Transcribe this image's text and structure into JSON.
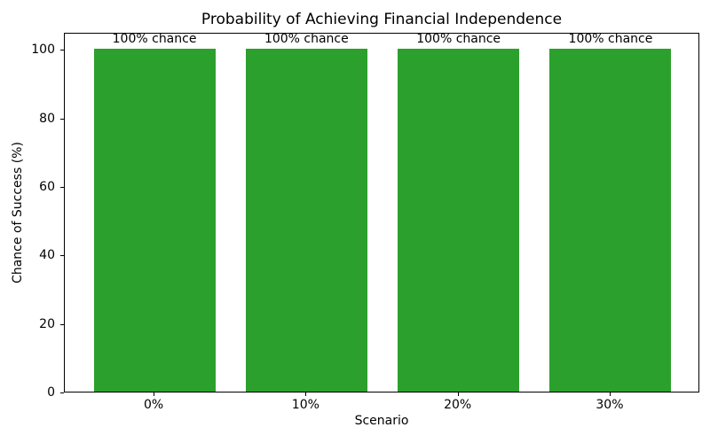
{
  "chart_data": {
    "type": "bar",
    "title": "Probability of Achieving Financial Independence",
    "xlabel": "Scenario",
    "ylabel": "Chance of Success (%)",
    "categories": [
      "0%",
      "10%",
      "20%",
      "30%"
    ],
    "values": [
      100,
      100,
      100,
      100
    ],
    "bar_labels": [
      "100% chance",
      "100% chance",
      "100% chance",
      "100% chance"
    ],
    "yticks": [
      0,
      20,
      40,
      60,
      80,
      100
    ],
    "ylim": [
      0,
      105
    ],
    "bar_color": "#2ca02c",
    "background_color": "#ffffff",
    "text_color": "#000000",
    "grid": false,
    "legend_position": "none"
  }
}
